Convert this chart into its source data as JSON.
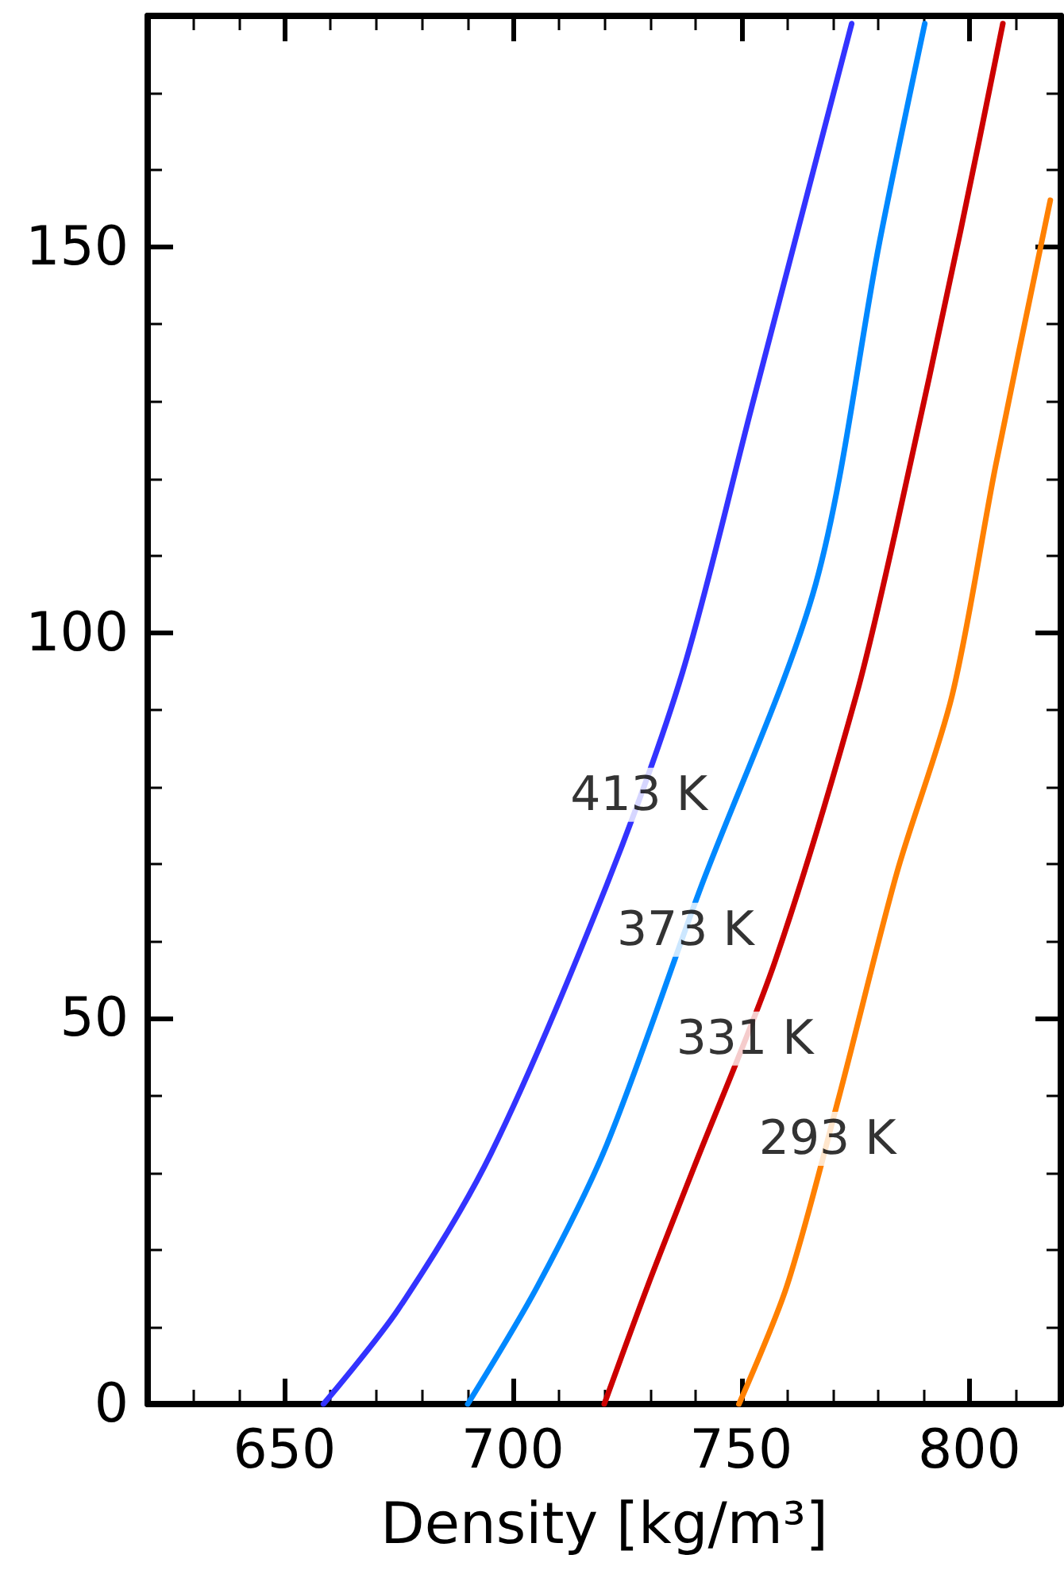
{
  "chart_data": {
    "type": "line",
    "xlabel": "Density [kg/m³]",
    "xlim": [
      620,
      820
    ],
    "ylim": [
      0,
      180
    ],
    "xticks": [
      {
        "value": 630,
        "label": null
      },
      {
        "value": 640,
        "label": null
      },
      650,
      {
        "value": 660,
        "label": null
      },
      {
        "value": 670,
        "label": null
      },
      {
        "value": 680,
        "label": null
      },
      {
        "value": 690,
        "label": null
      },
      700,
      {
        "value": 710,
        "label": null
      },
      {
        "value": 720,
        "label": null
      },
      {
        "value": 730,
        "label": null
      },
      {
        "value": 740,
        "label": null
      },
      750,
      {
        "value": 760,
        "label": null
      },
      {
        "value": 770,
        "label": null
      },
      {
        "value": 780,
        "label": null
      },
      {
        "value": 790,
        "label": null
      },
      800,
      {
        "value": 810,
        "label": null
      }
    ],
    "yticks": [
      0,
      {
        "value": 10,
        "label": null
      },
      {
        "value": 20,
        "label": null
      },
      {
        "value": 30,
        "label": null
      },
      {
        "value": 40,
        "label": null
      },
      50,
      {
        "value": 60,
        "label": null
      },
      {
        "value": 70,
        "label": null
      },
      {
        "value": 80,
        "label": null
      },
      {
        "value": 90,
        "label": null
      },
      100,
      {
        "value": 110,
        "label": null
      },
      {
        "value": 120,
        "label": null
      },
      {
        "value": 130,
        "label": null
      },
      {
        "value": 140,
        "label": null
      },
      150,
      {
        "value": 160,
        "label": null
      },
      {
        "value": 170,
        "label": null
      }
    ],
    "grid": false,
    "marker": "none",
    "line_style": "solid",
    "series": [
      {
        "color": "#3333ff",
        "x": [
          658.5,
          674.9,
          695.2,
          720.6,
          737.1,
          752.3,
          774.2
        ],
        "values": [
          0,
          12.3,
          32.5,
          67.4,
          94.8,
          129.3,
          179
        ]
      },
      {
        "color": "#0088ff",
        "x": [
          690.1,
          705.4,
          720.6,
          740.9,
          766.3,
          780.3,
          790.2
        ],
        "values": [
          0,
          15.3,
          33.7,
          66.6,
          106.3,
          150.7,
          179
        ]
      },
      {
        "color": "#cc0000",
        "x": [
          720,
          729.5,
          739.6,
          757.4,
          775.2,
          784.1,
          798.1,
          807.3
        ],
        "values": [
          0,
          15.3,
          30.6,
          57.4,
          91.9,
          114,
          152.3,
          179
        ]
      },
      {
        "color": "#ff8000",
        "x": [
          749.5,
          760,
          771.4,
          784.1,
          796.2,
          805.7,
          817.7
        ],
        "values": [
          0,
          15.3,
          39.8,
          68.9,
          91.9,
          121.6,
          156.1
        ]
      }
    ],
    "annotations": [
      {
        "text": "413 K",
        "x": 727.6,
        "y": 79
      },
      {
        "text": "373 K",
        "x": 737.8,
        "y": 61.5
      },
      {
        "text": "331 K",
        "x": 750.8,
        "y": 47.4
      },
      {
        "text": "293 K",
        "x": 768.9,
        "y": 34.4
      }
    ]
  }
}
